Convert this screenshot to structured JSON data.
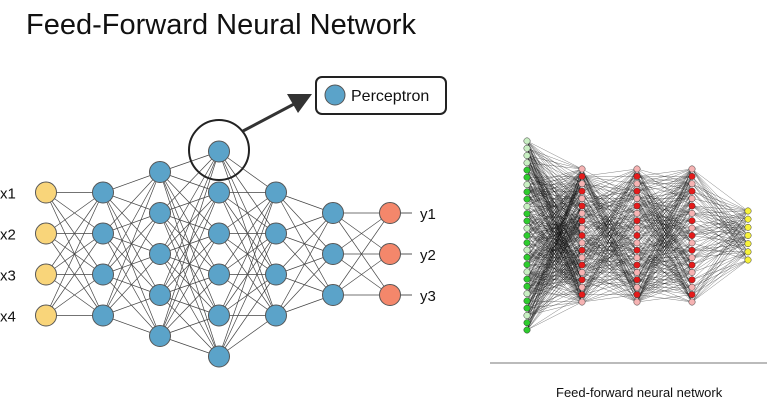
{
  "title": "Feed-Forward Neural Network",
  "left_diagram": {
    "callout_label": "Perceptron",
    "input_labels": [
      "x1",
      "x2",
      "x3",
      "x4"
    ],
    "output_labels": [
      "y1",
      "y2",
      "y3"
    ],
    "layer_sizes": [
      4,
      4,
      5,
      6,
      4,
      3,
      3
    ],
    "colors": {
      "input": "#f9d57a",
      "hidden": "#5ba3c9",
      "output": "#f4876b",
      "stroke": "#555555",
      "edge": "#444444"
    }
  },
  "right_diagram": {
    "caption": "Feed-forward neural network",
    "layer_sizes": [
      27,
      19,
      19,
      19,
      7
    ],
    "colors": {
      "input_light": "#c9efc3",
      "input_dark": "#2ecc2e",
      "hidden_light": "#f6b3b3",
      "hidden_dark": "#e41b1b",
      "output": "#f7f23a",
      "edge": "#000000"
    }
  }
}
